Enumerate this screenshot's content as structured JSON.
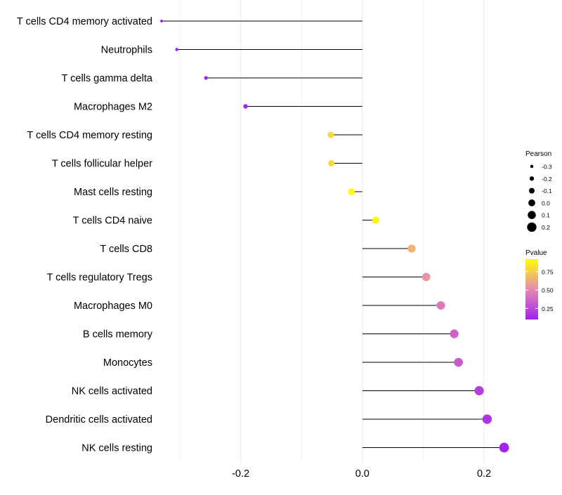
{
  "chart_data": {
    "type": "lollipop",
    "title": "",
    "xlabel": "",
    "ylabel": "",
    "xlim": [
      -0.33,
      0.245
    ],
    "x_ticks": [
      {
        "value": -0.2,
        "label": "-0.2"
      },
      {
        "value": 0.0,
        "label": "0.0"
      },
      {
        "value": 0.2,
        "label": "0.2"
      }
    ],
    "x_minor_gridlines": [
      -0.3,
      -0.1,
      0.1
    ],
    "baseline": 0.0,
    "grid": true,
    "points": [
      {
        "label": "T cells CD4 memory activated",
        "pearson": -0.33,
        "pvalue": 0.01
      },
      {
        "label": "Neutrophils",
        "pearson": -0.305,
        "pvalue": 0.02
      },
      {
        "label": "T cells gamma delta",
        "pearson": -0.257,
        "pvalue": 0.05
      },
      {
        "label": "Macrophages M2",
        "pearson": -0.192,
        "pvalue": 0.12
      },
      {
        "label": "T cells CD4 memory resting",
        "pearson": -0.052,
        "pvalue": 0.78
      },
      {
        "label": "T cells follicular helper",
        "pearson": -0.051,
        "pvalue": 0.78
      },
      {
        "label": "Mast cells resting",
        "pearson": -0.018,
        "pvalue": 0.92
      },
      {
        "label": "T cells CD4 naive",
        "pearson": 0.022,
        "pvalue": 0.9
      },
      {
        "label": "T cells CD8",
        "pearson": 0.081,
        "pvalue": 0.65
      },
      {
        "label": "T cells regulatory  Tregs ",
        "pearson": 0.105,
        "pvalue": 0.55
      },
      {
        "label": "Macrophages M0",
        "pearson": 0.129,
        "pvalue": 0.45
      },
      {
        "label": "B cells memory",
        "pearson": 0.151,
        "pvalue": 0.36
      },
      {
        "label": "Monocytes",
        "pearson": 0.158,
        "pvalue": 0.33
      },
      {
        "label": "NK cells activated",
        "pearson": 0.192,
        "pvalue": 0.22
      },
      {
        "label": "Dendritic cells activated",
        "pearson": 0.205,
        "pvalue": 0.18
      },
      {
        "label": "NK cells resting",
        "pearson": 0.233,
        "pvalue": 0.12
      }
    ],
    "size_legend": {
      "title": "Pearson",
      "entries": [
        {
          "value": -0.3,
          "label": "-0.3"
        },
        {
          "value": -0.2,
          "label": "-0.2"
        },
        {
          "value": -0.1,
          "label": "-0.1"
        },
        {
          "value": 0.0,
          "label": "0.0"
        },
        {
          "value": 0.1,
          "label": "0.1"
        },
        {
          "value": 0.2,
          "label": "0.2"
        }
      ]
    },
    "color_legend": {
      "title": "Pvalue",
      "range": [
        0.1,
        0.92
      ],
      "ticks": [
        {
          "value": 0.75,
          "label": "0.75"
        },
        {
          "value": 0.5,
          "label": "0.50"
        },
        {
          "value": 0.25,
          "label": "0.25"
        }
      ],
      "colors": {
        "low": "#a020f0",
        "mid": "#e58ab0",
        "high": "#ffff00"
      }
    },
    "colors": {
      "line": "#000000",
      "gridline": "#ebebeb",
      "background": "#ffffff"
    }
  }
}
